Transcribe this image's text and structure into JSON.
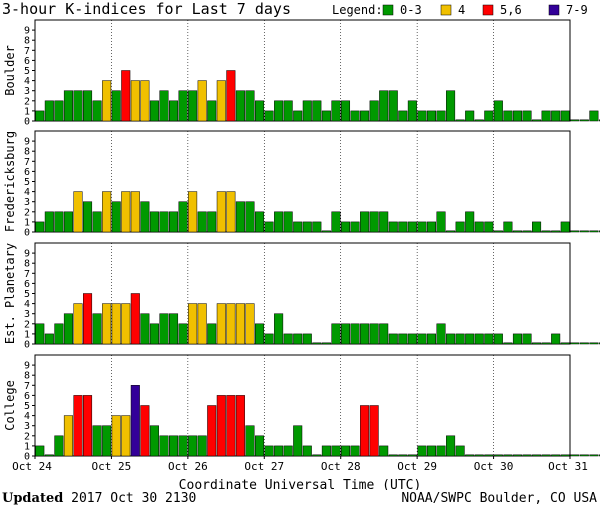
{
  "title": "3-hour K-indices for Last 7 days",
  "legend": {
    "label": "Legend:",
    "items": [
      {
        "name": "0-3",
        "color": "#009900"
      },
      {
        "name": "4",
        "color": "#f0c000"
      },
      {
        "name": "5,6",
        "color": "#ff0000"
      },
      {
        "name": "7-9",
        "color": "#330099"
      }
    ]
  },
  "colors": {
    "quiet": "#009900",
    "active": "#f0c000",
    "storm": "#ff0000",
    "severe": "#330099",
    "outline": "#000000"
  },
  "footer": {
    "updated_label": "Updated",
    "updated_value": "2017 Oct 30 2130",
    "source": "NOAA/SWPC Boulder, CO USA"
  },
  "chart_data": {
    "type": "bar",
    "xlabel": "Coordinate Universal Time (UTC)",
    "x_tick_labels": [
      "Oct 24",
      "Oct 25",
      "Oct 26",
      "Oct 27",
      "Oct 28",
      "Oct 29",
      "Oct 30",
      "Oct 31"
    ],
    "y_ticks": [
      0,
      1,
      2,
      3,
      4,
      5,
      6,
      7,
      8,
      9
    ],
    "ylim": [
      0,
      9
    ],
    "bars_per_day": 8,
    "grid": false,
    "legend_position": "top-right",
    "panels": [
      {
        "name": "Boulder",
        "values": [
          1,
          2,
          2,
          3,
          3,
          3,
          2,
          4,
          3,
          5,
          4,
          4,
          2,
          3,
          2,
          3,
          3,
          4,
          2,
          4,
          5,
          3,
          3,
          2,
          1,
          2,
          2,
          1,
          2,
          2,
          1,
          2,
          2,
          1,
          1,
          2,
          3,
          3,
          1,
          2,
          1,
          1,
          1,
          3,
          0,
          1,
          0,
          1,
          2,
          1,
          1,
          1,
          0,
          1,
          1,
          1,
          0,
          0,
          1,
          0,
          0
        ]
      },
      {
        "name": "Fredericksburg",
        "values": [
          1,
          2,
          2,
          2,
          4,
          3,
          2,
          4,
          3,
          4,
          4,
          3,
          2,
          2,
          2,
          3,
          4,
          2,
          2,
          4,
          4,
          3,
          3,
          2,
          1,
          2,
          2,
          1,
          1,
          1,
          0,
          2,
          1,
          1,
          2,
          2,
          2,
          1,
          1,
          1,
          1,
          1,
          2,
          0,
          1,
          2,
          1,
          1,
          0,
          1,
          0,
          0,
          1,
          0,
          0,
          1,
          0,
          0,
          0,
          0,
          0
        ]
      },
      {
        "name": "Est. Planetary",
        "values": [
          2,
          1,
          2,
          3,
          4,
          5,
          3,
          4,
          4,
          4,
          5,
          3,
          2,
          3,
          3,
          2,
          4,
          4,
          2,
          4,
          4,
          4,
          4,
          2,
          1,
          3,
          1,
          1,
          1,
          0,
          0,
          2,
          2,
          2,
          2,
          2,
          2,
          1,
          1,
          1,
          1,
          1,
          2,
          1,
          1,
          1,
          1,
          1,
          1,
          0,
          1,
          1,
          0,
          0,
          1,
          0,
          0,
          0,
          0,
          0,
          0
        ]
      },
      {
        "name": "College",
        "values": [
          1,
          0,
          2,
          4,
          6,
          6,
          3,
          3,
          4,
          4,
          7,
          5,
          3,
          2,
          2,
          2,
          2,
          2,
          5,
          6,
          6,
          6,
          3,
          2,
          1,
          1,
          1,
          3,
          1,
          0,
          1,
          1,
          1,
          1,
          5,
          5,
          1,
          0,
          0,
          0,
          1,
          1,
          1,
          2,
          1,
          0,
          0,
          0,
          0,
          0,
          0,
          0,
          0,
          0,
          0,
          0,
          0,
          0,
          0,
          0,
          0
        ]
      }
    ]
  }
}
